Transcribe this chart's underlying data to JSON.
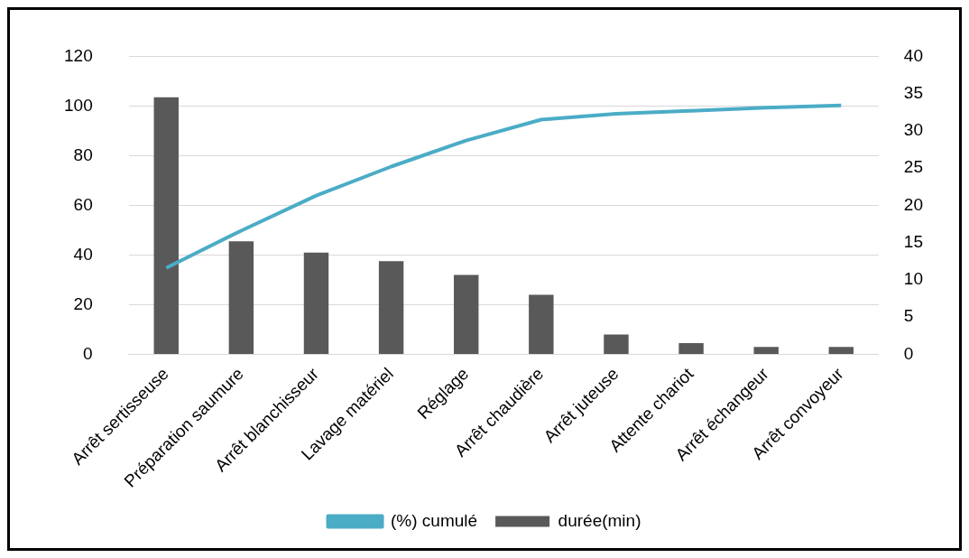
{
  "chart_data": {
    "type": "bar",
    "categories": [
      "Arrêt sertisseuse",
      "Préparation saumure",
      "Arrêt blanchisseur",
      "Lavage matériel",
      "Réglage",
      "Arrêt chaudière",
      "Arrêt juteuse",
      "Attente chariot",
      "Arrêt échangeur",
      "Arrêt convoyeur"
    ],
    "series": [
      {
        "name": "durée(min)",
        "color": "#595959",
        "values": [
          103.5,
          45.5,
          41,
          37.5,
          32,
          24,
          8,
          4.5,
          3,
          3
        ]
      },
      {
        "name": "(%) cumulé",
        "type": "line",
        "axis": "y2",
        "color": "#4bacc6",
        "values": [
          11.6,
          16.6,
          21.3,
          25.2,
          28.7,
          31.5,
          32.3,
          32.7,
          33.1,
          33.4
        ]
      }
    ],
    "ylim": [
      0,
      120
    ],
    "yticks": [
      0,
      20,
      40,
      60,
      80,
      100,
      120
    ],
    "y2lim": [
      0,
      40
    ],
    "y2ticks": [
      0,
      5,
      10,
      15,
      20,
      25,
      30,
      35,
      40
    ],
    "grid": "y",
    "legend": "bottom",
    "marker": "none"
  }
}
